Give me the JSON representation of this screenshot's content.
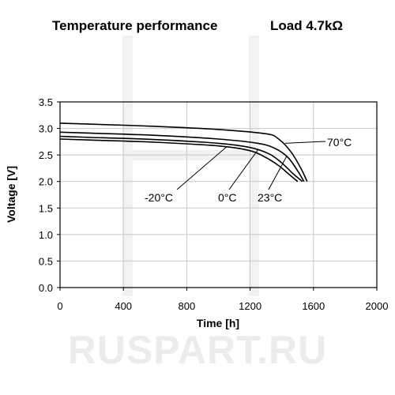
{
  "header": {
    "title": "Temperature performance",
    "load_label": "Load 4.7kΩ"
  },
  "watermark": {
    "text": "RUSPART.RU"
  },
  "chart_data": {
    "type": "line",
    "title": "Temperature performance",
    "subtitle": "Load 4.7kΩ",
    "xlabel": "Time [h]",
    "ylabel": "Voltage [V]",
    "xlim": [
      0,
      2000
    ],
    "ylim": [
      0,
      3.5
    ],
    "xticks": [
      0,
      400,
      800,
      1200,
      1600,
      2000
    ],
    "yticks": [
      0.0,
      0.5,
      1.0,
      1.5,
      2.0,
      2.5,
      3.0,
      3.5
    ],
    "xtick_labels": [
      "0",
      "400",
      "800",
      "1200",
      "1600",
      "2000"
    ],
    "ytick_labels": [
      "0.0",
      "0.5",
      "1.0",
      "1.5",
      "2.0",
      "2.5",
      "3.0",
      "3.5"
    ],
    "grid": true,
    "series": [
      {
        "name": "70°C",
        "x": [
          0,
          200,
          600,
          1000,
          1300,
          1380,
          1460,
          1520,
          1560
        ],
        "y": [
          3.1,
          3.08,
          3.04,
          2.98,
          2.9,
          2.8,
          2.55,
          2.25,
          2.0
        ]
      },
      {
        "name": "23°C",
        "x": [
          0,
          200,
          600,
          1000,
          1250,
          1360,
          1440,
          1500,
          1540
        ],
        "y": [
          2.93,
          2.91,
          2.87,
          2.8,
          2.72,
          2.62,
          2.45,
          2.2,
          2.0
        ]
      },
      {
        "name": "0°C",
        "x": [
          0,
          200,
          600,
          1000,
          1200,
          1320,
          1400,
          1470,
          1530
        ],
        "y": [
          2.85,
          2.83,
          2.79,
          2.72,
          2.64,
          2.52,
          2.35,
          2.15,
          2.0
        ]
      },
      {
        "name": "-20°C",
        "x": [
          0,
          200,
          600,
          1000,
          1200,
          1300,
          1380,
          1440,
          1500
        ],
        "y": [
          2.8,
          2.78,
          2.74,
          2.67,
          2.58,
          2.45,
          2.3,
          2.15,
          2.0
        ]
      }
    ],
    "annotations": [
      {
        "text": "70°C",
        "series": "70°C"
      },
      {
        "text": "23°C",
        "series": "23°C"
      },
      {
        "text": "0°C",
        "series": "0°C"
      },
      {
        "text": "-20°C",
        "series": "-20°C"
      }
    ]
  }
}
